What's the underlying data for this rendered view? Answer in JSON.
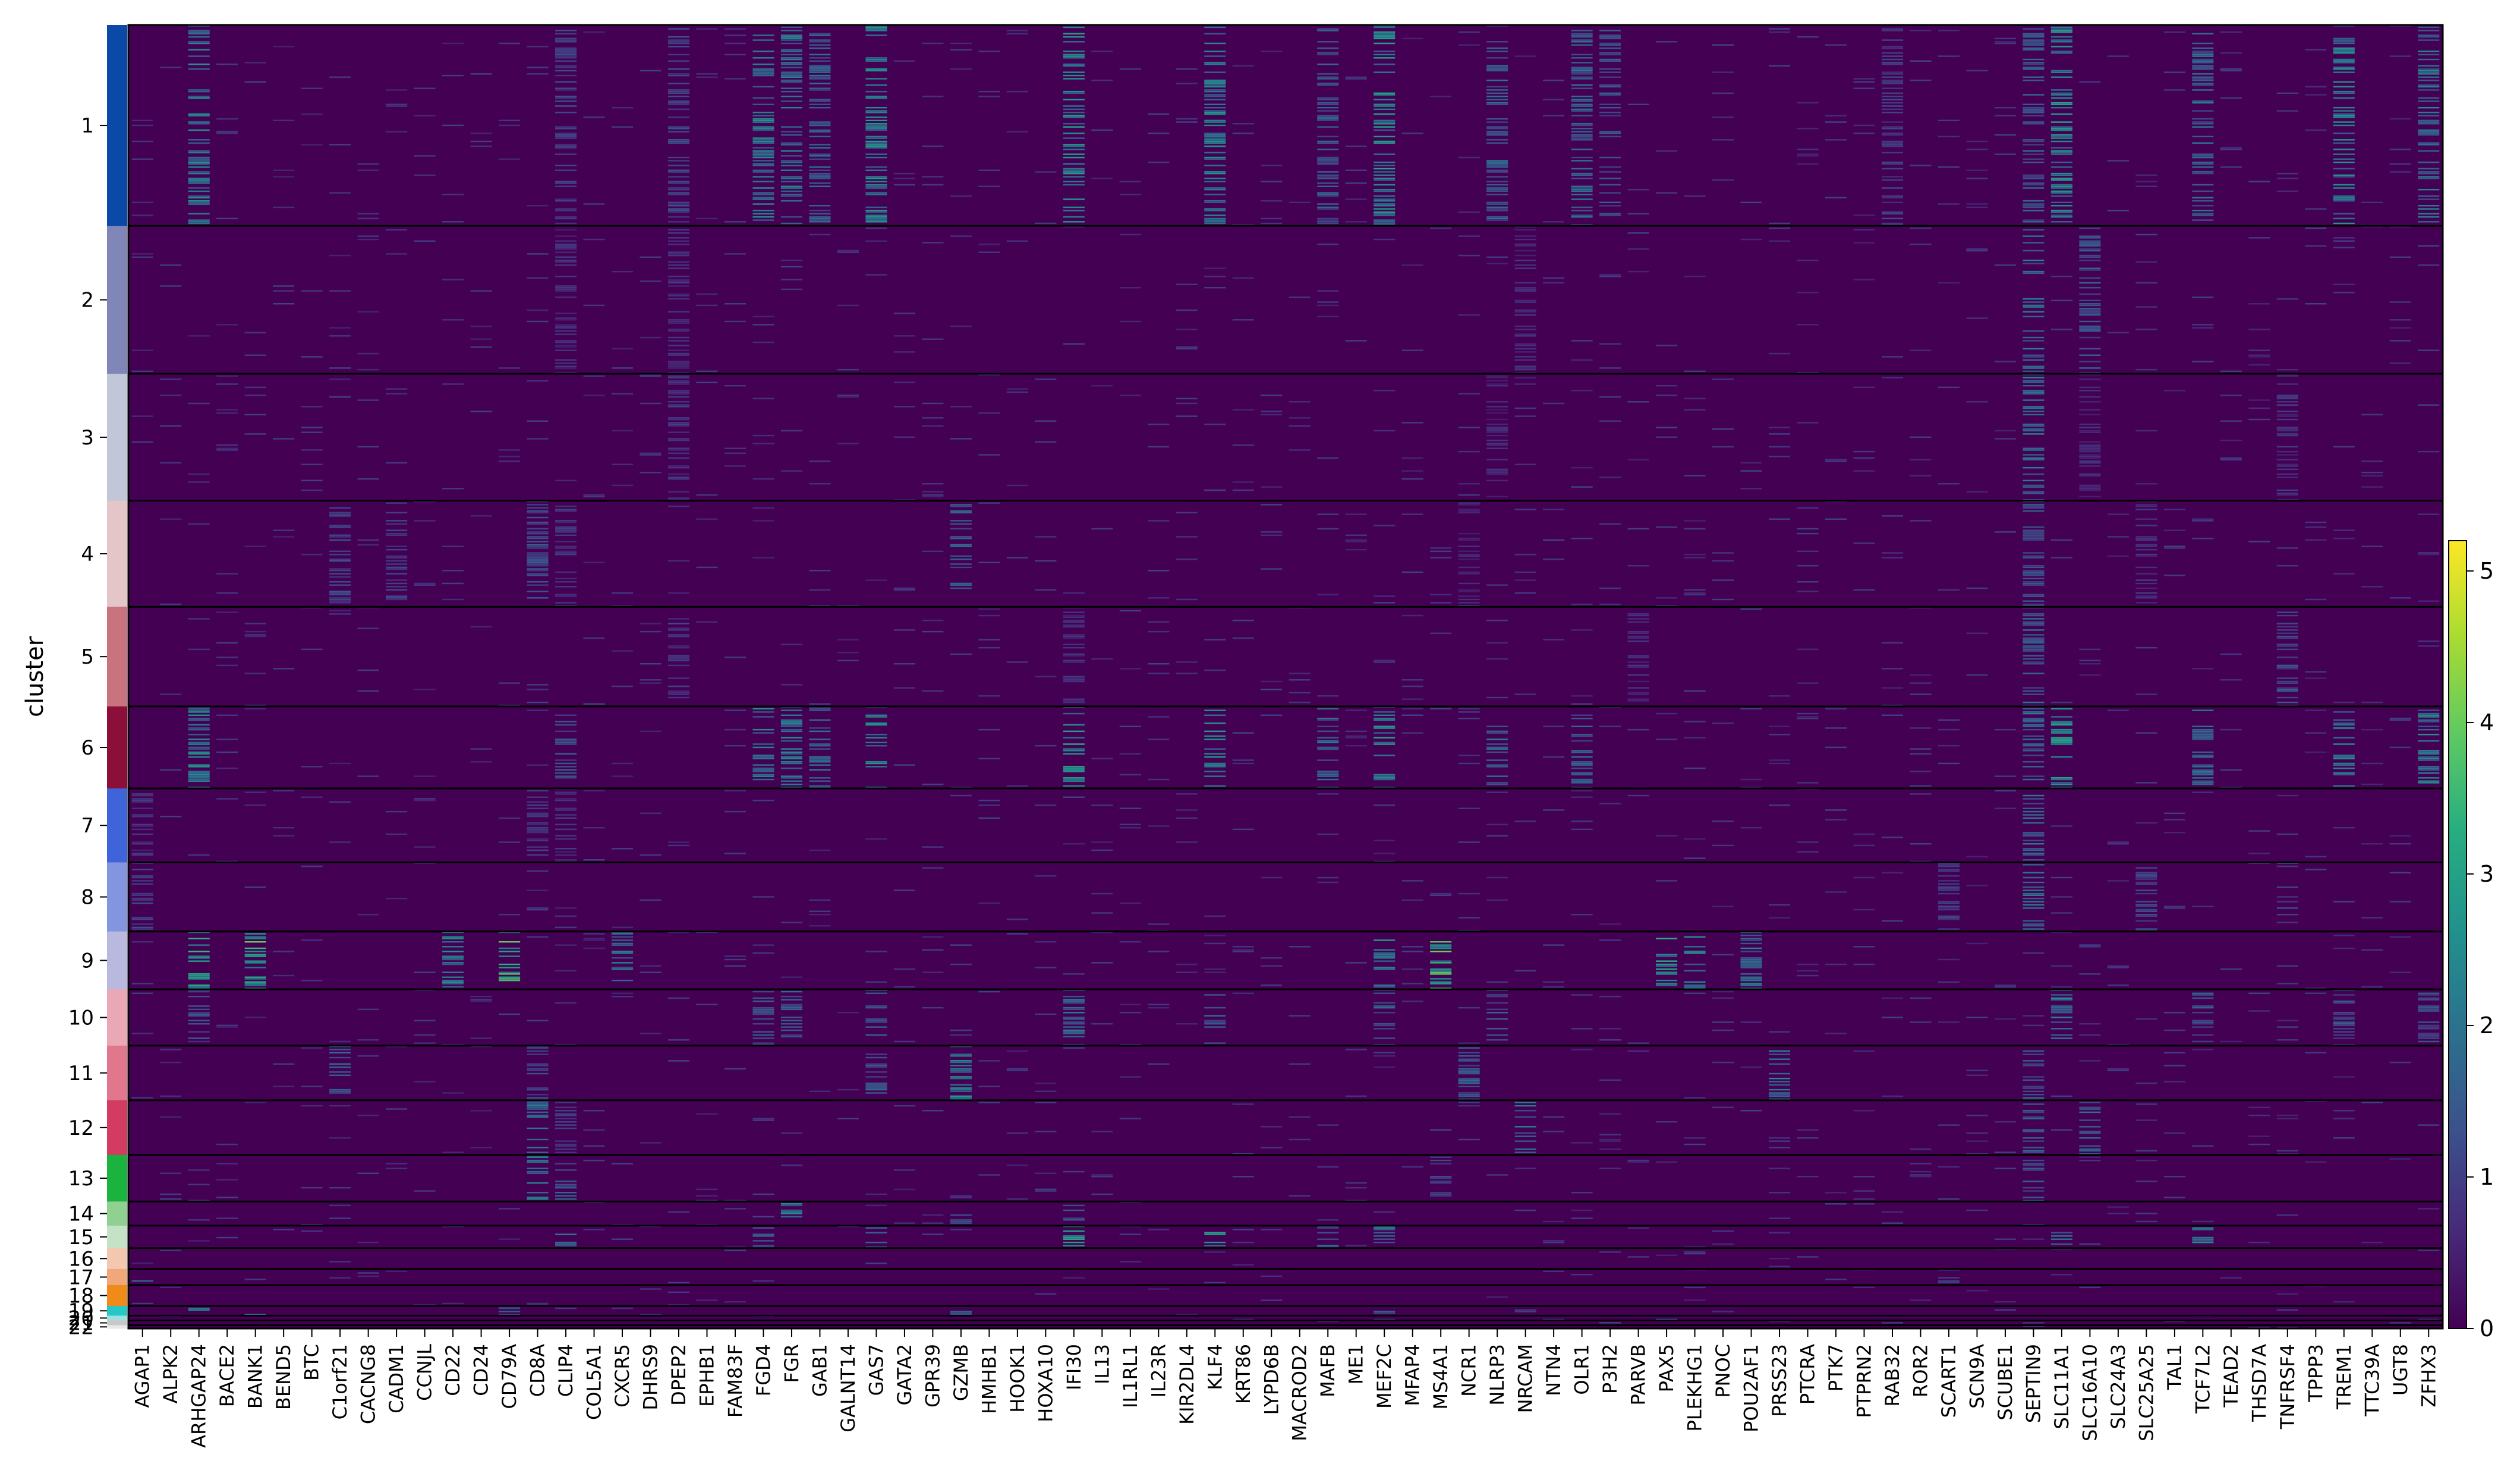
{
  "chart_data": {
    "type": "heatmap",
    "title": "",
    "xlabel": "",
    "ylabel": "cluster",
    "colormap": "viridis",
    "colorbar": {
      "range": [
        0,
        5.2
      ],
      "ticks": [
        0,
        1,
        2,
        3,
        4,
        5
      ],
      "tick_labels": [
        "0",
        "1",
        "2",
        "3",
        "4",
        "5"
      ],
      "position": "right"
    },
    "genes": [
      "AGAP1",
      "ALPK2",
      "ARHGAP24",
      "BACE2",
      "BANK1",
      "BEND5",
      "BTC",
      "C1orf21",
      "CACNG8",
      "CADM1",
      "CCNJL",
      "CD22",
      "CD24",
      "CD79A",
      "CD8A",
      "CLIP4",
      "COL5A1",
      "CXCR5",
      "DHRS9",
      "DPEP2",
      "EPHB1",
      "FAM83F",
      "FGD4",
      "FGR",
      "GAB1",
      "GALNT14",
      "GAS7",
      "GATA2",
      "GPR39",
      "GZMB",
      "HMHB1",
      "HOOK1",
      "HOXA10",
      "IFI30",
      "IL13",
      "IL1RL1",
      "IL23R",
      "KIR2DL4",
      "KLF4",
      "KRT86",
      "LYPD6B",
      "MACROD2",
      "MAFB",
      "ME1",
      "MEF2C",
      "MFAP4",
      "MS4A1",
      "NCR1",
      "NLRP3",
      "NRCAM",
      "NTN4",
      "OLR1",
      "P3H2",
      "PARVB",
      "PAX5",
      "PLEKHG1",
      "PNOC",
      "POU2AF1",
      "PRSS23",
      "PTCRA",
      "PTK7",
      "PTPRN2",
      "RAB32",
      "ROR2",
      "SCART1",
      "SCN9A",
      "SCUBE1",
      "SEPTIN9",
      "SLC11A1",
      "SLC16A10",
      "SLC24A3",
      "SLC25A25",
      "TAL1",
      "TCF7L2",
      "TEAD2",
      "THSD7A",
      "TNFRSF4",
      "TPPP3",
      "TREM1",
      "TTC39A",
      "UGT8",
      "ZFHX3"
    ],
    "clusters": [
      {
        "label": "1",
        "cells": 125,
        "color": "#0b49a8"
      },
      {
        "label": "2",
        "cells": 92,
        "color": "#8186b8"
      },
      {
        "label": "3",
        "cells": 79,
        "color": "#c2c6d9"
      },
      {
        "label": "4",
        "cells": 66,
        "color": "#e4c5c8"
      },
      {
        "label": "5",
        "cells": 62,
        "color": "#c7747f"
      },
      {
        "label": "6",
        "cells": 51,
        "color": "#8c0f3a"
      },
      {
        "label": "7",
        "cells": 46,
        "color": "#3f63d8"
      },
      {
        "label": "8",
        "cells": 43,
        "color": "#8495e0"
      },
      {
        "label": "9",
        "cells": 36,
        "color": "#b9b9e0"
      },
      {
        "label": "10",
        "cells": 35,
        "color": "#eaa8b6"
      },
      {
        "label": "11",
        "cells": 34,
        "color": "#e1778c"
      },
      {
        "label": "12",
        "cells": 34,
        "color": "#d23c63"
      },
      {
        "label": "13",
        "cells": 29,
        "color": "#19b33d"
      },
      {
        "label": "14",
        "cells": 15,
        "color": "#90d090"
      },
      {
        "label": "15",
        "cells": 14,
        "color": "#c6e2c6"
      },
      {
        "label": "16",
        "cells": 13,
        "color": "#f3c7b0"
      },
      {
        "label": "17",
        "cells": 10,
        "color": "#f0a87a"
      },
      {
        "label": "18",
        "cells": 13,
        "color": "#f08a18"
      },
      {
        "label": "19",
        "cells": 6,
        "color": "#25c7c7"
      },
      {
        "label": "20",
        "cells": 3,
        "color": "#9ee0e0"
      },
      {
        "label": "21",
        "cells": 3,
        "color": "#c8c8c8"
      },
      {
        "label": "22",
        "cells": 2,
        "color": "#e8e8e8"
      }
    ],
    "high_expression": [
      {
        "cluster": "1",
        "genes": {
          "ARHGAP24": 2.4,
          "FGD4": 2.3,
          "FGR": 2.1,
          "GAB1": 1.8,
          "GAS7": 2.5,
          "IFI30": 2.7,
          "KLF4": 2.4,
          "MAFB": 1.6,
          "MEF2C": 2.6,
          "NLRP3": 1.8,
          "OLR1": 1.9,
          "P3H2": 1.5,
          "SLC11A1": 2.6,
          "SEPTIN9": 1.7,
          "TCF7L2": 1.9,
          "TREM1": 2.4,
          "ZFHX3": 2.2,
          "CLIP4": 1.2,
          "DPEP2": 1.2,
          "RAB32": 1.1
        }
      },
      {
        "cluster": "2",
        "genes": {
          "SEPTIN9": 2.0,
          "SLC16A10": 1.5,
          "CLIP4": 0.8,
          "DPEP2": 0.8,
          "NRCAM": 0.8
        }
      },
      {
        "cluster": "3",
        "genes": {
          "SEPTIN9": 2.1,
          "DPEP2": 0.9,
          "TNFRSF4": 0.9,
          "SLC16A10": 0.8,
          "NLRP3": 0.7
        }
      },
      {
        "cluster": "4",
        "genes": {
          "CD8A": 1.4,
          "GZMB": 1.8,
          "C1orf21": 1.2,
          "CADM1": 1.1,
          "CLIP4": 0.9,
          "SEPTIN9": 1.4,
          "SLC25A25": 0.9,
          "NCR1": 0.7
        }
      },
      {
        "cluster": "5",
        "genes": {
          "SEPTIN9": 1.8,
          "DPEP2": 1.0,
          "TNFRSF4": 1.3,
          "IFI30": 0.8,
          "PARVB": 0.8
        }
      },
      {
        "cluster": "6",
        "genes": {
          "ARHGAP24": 2.4,
          "FGD4": 2.2,
          "FGR": 2.4,
          "GAB1": 1.9,
          "GAS7": 2.6,
          "IFI30": 2.8,
          "KLF4": 2.5,
          "MAFB": 1.8,
          "MEF2C": 2.7,
          "NLRP3": 2.0,
          "OLR1": 1.7,
          "SLC11A1": 2.8,
          "TCF7L2": 2.0,
          "TREM1": 2.5,
          "ZFHX3": 2.3,
          "SEPTIN9": 1.9,
          "CLIP4": 1.5
        }
      },
      {
        "cluster": "7",
        "genes": {
          "SEPTIN9": 2.0,
          "CD8A": 1.0,
          "CLIP4": 0.9,
          "AGAP1": 0.9
        }
      },
      {
        "cluster": "8",
        "genes": {
          "SEPTIN9": 1.9,
          "TNFRSF4": 1.2,
          "SLC25A25": 1.3,
          "AGAP1": 1.1,
          "SCART1": 1.2
        }
      },
      {
        "cluster": "9",
        "genes": {
          "BANK1": 3.6,
          "CD79A": 3.6,
          "MS4A1": 3.5,
          "ARHGAP24": 3.0,
          "CD22": 2.4,
          "CXCR5": 2.1,
          "PAX5": 2.8,
          "PLEKHG1": 2.4,
          "POU2AF1": 2.0,
          "MEF2C": 2.6
        }
      },
      {
        "cluster": "10",
        "genes": {
          "FGD4": 1.6,
          "FGR": 1.7,
          "GAS7": 1.8,
          "IFI30": 2.0,
          "KLF4": 1.8,
          "MEF2C": 1.6,
          "NLRP3": 1.6,
          "SLC11A1": 2.2,
          "TCF7L2": 1.5,
          "TREM1": 1.4,
          "ZFHX3": 1.3,
          "ARHGAP24": 1.4
        }
      },
      {
        "cluster": "11",
        "genes": {
          "GZMB": 2.5,
          "C1orf21": 1.9,
          "NCR1": 1.8,
          "PRSS23": 2.2,
          "CD8A": 1.2,
          "GAS7": 1.5,
          "SEPTIN9": 1.5
        }
      },
      {
        "cluster": "12",
        "genes": {
          "CD8A": 2.0,
          "NRCAM": 2.1,
          "SLC16A10": 1.7,
          "SEPTIN9": 1.8,
          "CLIP4": 1.0
        }
      },
      {
        "cluster": "13",
        "genes": {
          "CD8A": 2.2,
          "CLIP4": 1.6,
          "SEPTIN9": 1.6,
          "MS4A1": 1.2
        }
      },
      {
        "cluster": "14",
        "genes": {
          "FGR": 2.3,
          "GZMB": 1.9,
          "IFI30": 1.4
        }
      },
      {
        "cluster": "15",
        "genes": {
          "IFI30": 2.9,
          "KLF4": 2.6,
          "TCF7L2": 2.8,
          "CLIP4": 2.0,
          "MEF2C": 2.0,
          "FGD4": 1.9,
          "GAS7": 1.9,
          "MAFB": 1.8,
          "SLC11A1": 1.9
        }
      },
      {
        "cluster": "16",
        "genes": {}
      },
      {
        "cluster": "17",
        "genes": {
          "AGAP1": 2.8,
          "SCART1": 1.5
        }
      },
      {
        "cluster": "18",
        "genes": {}
      },
      {
        "cluster": "19",
        "genes": {
          "ARHGAP24": 2.3,
          "BANK1": 2.6,
          "CD79A": 1.6,
          "GZMB": 1.8,
          "MEF2C": 1.6
        }
      },
      {
        "cluster": "20",
        "genes": {
          "PAX5": 1.5
        }
      },
      {
        "cluster": "21",
        "genes": {}
      },
      {
        "cluster": "22",
        "genes": {}
      }
    ]
  }
}
